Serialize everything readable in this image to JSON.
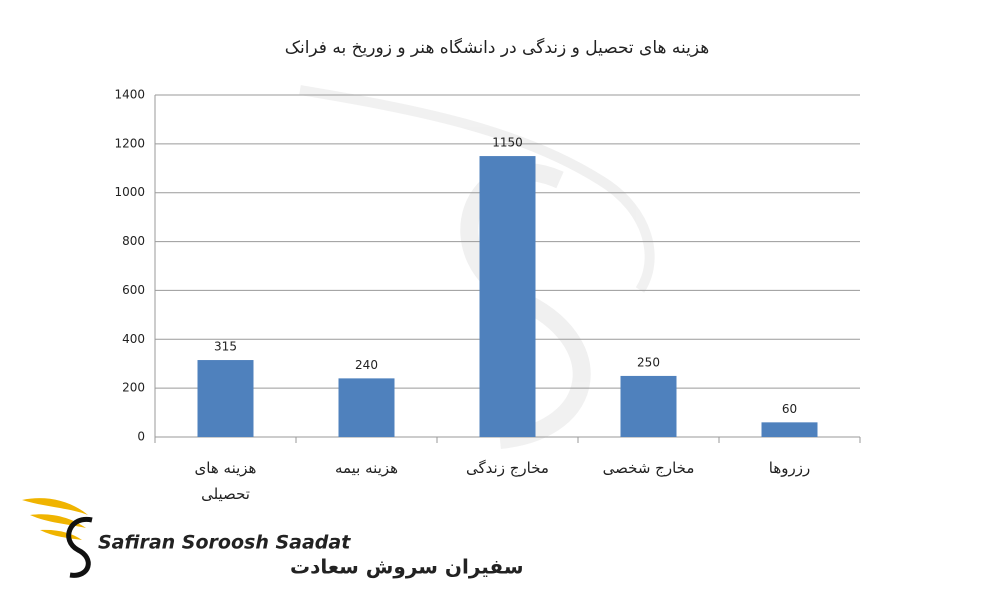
{
  "chart_data": {
    "type": "bar",
    "title": "هزینه های تحصیل و زندگی در دانشگاه هنر و زوریخ به فرانک",
    "categories": [
      "هزینه های تحصیلی",
      "هزینه بیمه",
      "مخارج زندگی",
      "مخارج شخصی",
      "رزروها"
    ],
    "values": [
      315,
      240,
      1150,
      250,
      60
    ],
    "color": "#4f81bd",
    "ylim": [
      0,
      1400
    ],
    "yticks": [
      0,
      200,
      400,
      600,
      800,
      1000,
      1200,
      1400
    ],
    "grid": true
  },
  "logo": {
    "latin": "Safiran Soroosh Saadat",
    "persian": "سفیران سروش سعادت"
  }
}
